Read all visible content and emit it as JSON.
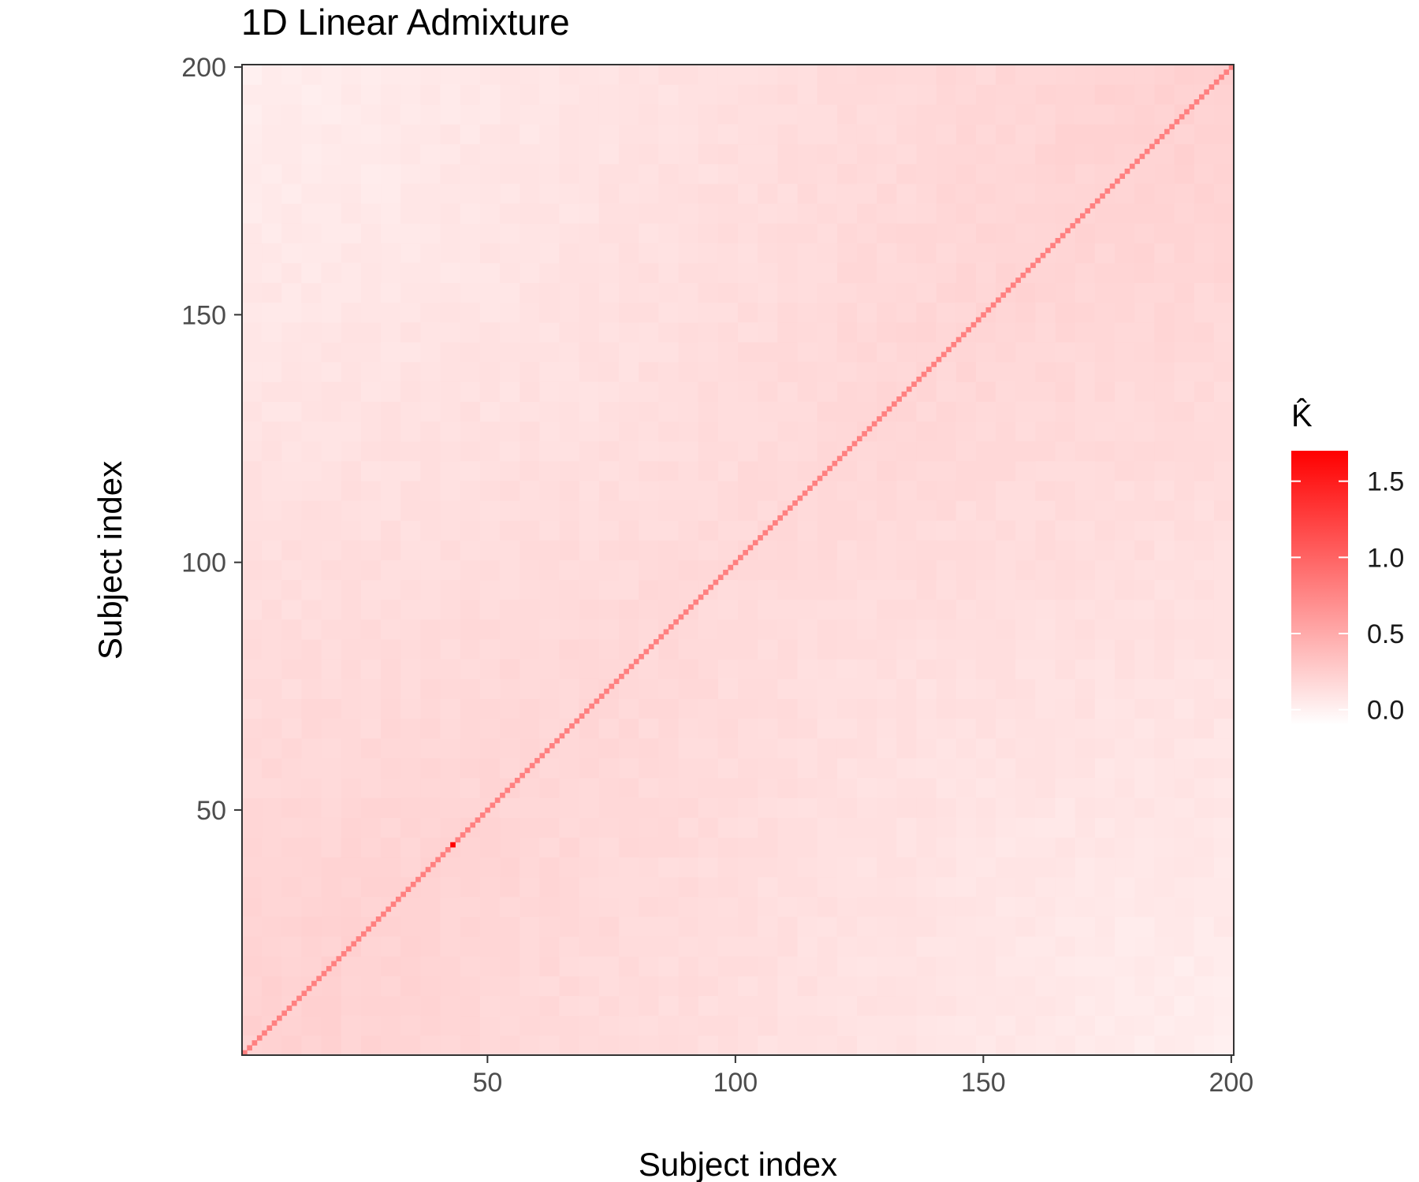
{
  "chart_data": {
    "type": "heatmap",
    "title": "1D Linear Admixture",
    "xlabel": "Subject index",
    "ylabel": "Subject index",
    "n": 200,
    "xlim": [
      1,
      200
    ],
    "ylim": [
      1,
      200
    ],
    "x_ticks": [
      50,
      100,
      150,
      200
    ],
    "y_ticks": [
      50,
      100,
      150,
      200
    ],
    "x_tick_labels": [
      "50",
      "100",
      "150",
      "200"
    ],
    "y_tick_labels": [
      "50",
      "100",
      "150",
      "200"
    ],
    "legend": {
      "title": "K̂",
      "placement": "right",
      "breaks": [
        1.5,
        1.0,
        0.5,
        0.0
      ],
      "labels": [
        "1.5",
        "1.0",
        "0.5",
        "0.0"
      ],
      "range": [
        -0.1,
        1.7
      ],
      "low_color": "#ffffff",
      "high_color": "#ff0000"
    },
    "diagonal_value": 0.8,
    "diagonal_max_value": 1.7,
    "diagonal_max_index": 43,
    "offdiag_low_value": 0.02,
    "offdiag_high_value": 0.28,
    "grid": false
  }
}
